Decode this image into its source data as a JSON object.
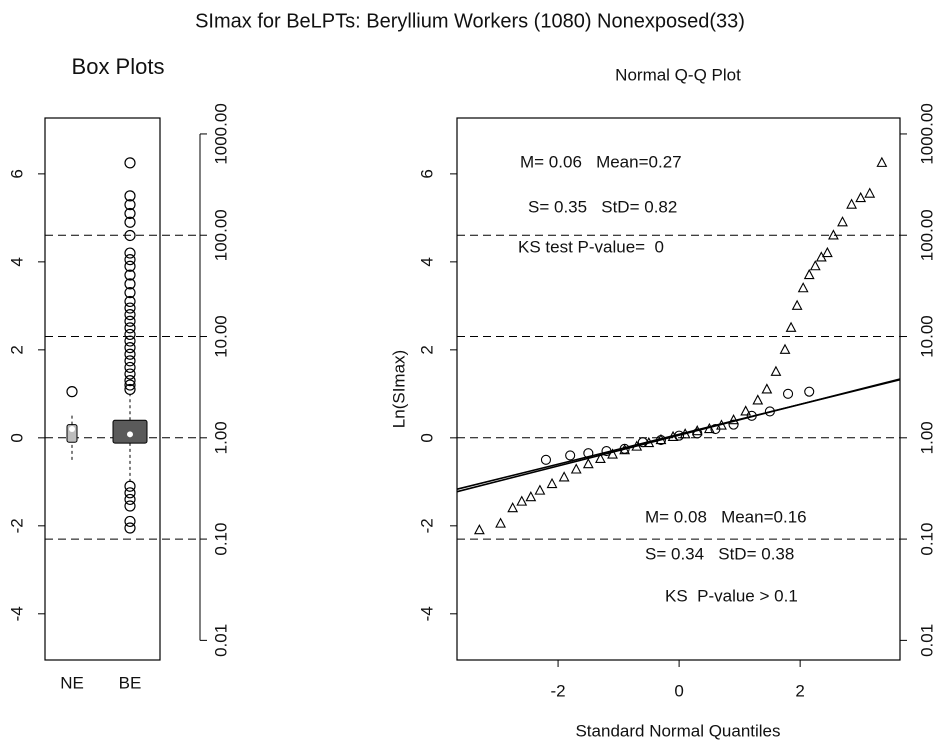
{
  "title": "SImax for BeLPTs:  Beryllium Workers (1080) Nonexposed(33)",
  "chart_data": [
    {
      "type": "box",
      "title": "Box Plots",
      "categories": [
        "NE",
        "BE"
      ],
      "boxes": [
        {
          "whisker_low": -0.5,
          "q1": -0.1,
          "median": 0.2,
          "q3": 0.3,
          "whisker_high": 0.55,
          "fill": "#bdbdbd",
          "outliers": [
            1.05
          ]
        },
        {
          "whisker_low": -1.0,
          "q1": -0.12,
          "median": 0.08,
          "q3": 0.4,
          "whisker_high": 1.0,
          "fill": "#5a5a5a",
          "outliers": [
            1.1,
            1.2,
            1.3,
            1.45,
            1.6,
            1.75,
            1.9,
            2.05,
            2.2,
            2.35,
            2.5,
            2.65,
            2.8,
            2.95,
            3.1,
            3.3,
            3.5,
            3.7,
            3.9,
            4.05,
            4.2,
            4.6,
            4.9,
            5.1,
            5.3,
            5.5,
            6.25,
            -1.1,
            -1.25,
            -1.4,
            -1.55,
            -1.9,
            -2.05
          ]
        }
      ],
      "ylim": [
        -5.05,
        7.27
      ],
      "yticks": [
        -4,
        -2,
        0,
        2,
        4,
        6
      ],
      "y2lim": [
        0.0064,
        1437
      ],
      "y2log": true,
      "y2ticks": [
        {
          "value": 0.01,
          "label": "0.01"
        },
        {
          "value": 0.1,
          "label": "0.10"
        },
        {
          "value": 1,
          "label": "1.00"
        },
        {
          "value": 10,
          "label": "10.00"
        },
        {
          "value": 100,
          "label": "100.00"
        },
        {
          "value": 1000,
          "label": "1000.00"
        }
      ],
      "hlines": [
        0.1,
        1,
        10,
        100
      ]
    },
    {
      "type": "qq",
      "title": "Normal Q-Q  Plot",
      "x_label": "Standard Normal Quantiles",
      "y_label": "Ln(SImax)",
      "series": [
        {
          "marker": "triangle",
          "x": [
            -3.3,
            -2.95,
            -2.75,
            -2.6,
            -2.45,
            -2.3,
            -2.1,
            -1.9,
            -1.7,
            -1.5,
            -1.3,
            -1.1,
            -0.9,
            -0.7,
            -0.5,
            -0.3,
            -0.1,
            0.1,
            0.3,
            0.5,
            0.7,
            0.9,
            1.1,
            1.3,
            1.45,
            1.6,
            1.75,
            1.85,
            1.95,
            2.05,
            2.15,
            2.25,
            2.35,
            2.45,
            2.55,
            2.7,
            2.85,
            3.0,
            3.15,
            3.35
          ],
          "values": [
            -2.1,
            -1.95,
            -1.6,
            -1.45,
            -1.35,
            -1.2,
            -1.05,
            -0.9,
            -0.72,
            -0.6,
            -0.48,
            -0.38,
            -0.28,
            -0.2,
            -0.12,
            -0.05,
            0.02,
            0.08,
            0.15,
            0.2,
            0.28,
            0.4,
            0.6,
            0.85,
            1.1,
            1.5,
            2.0,
            2.5,
            3.0,
            3.4,
            3.7,
            3.9,
            4.1,
            4.2,
            4.6,
            4.9,
            5.3,
            5.45,
            5.55,
            6.25
          ]
        },
        {
          "marker": "circle",
          "x": [
            -2.2,
            -1.8,
            -1.5,
            -1.2,
            -0.9,
            -0.6,
            -0.3,
            0,
            0.3,
            0.6,
            0.9,
            1.2,
            1.5,
            1.8,
            2.15
          ],
          "values": [
            -0.5,
            -0.4,
            -0.35,
            -0.3,
            -0.25,
            -0.1,
            -0.05,
            0.05,
            0.1,
            0.2,
            0.3,
            0.5,
            0.6,
            1.0,
            1.05
          ]
        }
      ],
      "ref_lines": [
        {
          "intercept": 0.08,
          "slope": 0.34
        },
        {
          "intercept": 0.06,
          "slope": 0.35
        }
      ],
      "annotations": [
        "M= 0.06   Mean=0.27",
        "S= 0.35   StD= 0.82",
        "KS test P-value=  0",
        "M= 0.08   Mean=0.16",
        "S= 0.34   StD= 0.38",
        "KS  P-value > 0.1"
      ],
      "xlim": [
        -3.67,
        3.65
      ],
      "xticks": [
        -2,
        0,
        2
      ],
      "ylim": [
        -5.05,
        7.27
      ],
      "yticks": [
        -4,
        -2,
        0,
        2,
        4,
        6
      ],
      "y2lim": [
        0.0064,
        1437
      ],
      "y2log": true,
      "y2ticks": [
        {
          "value": 0.01,
          "label": "0.01"
        },
        {
          "value": 0.1,
          "label": "0.10"
        },
        {
          "value": 1,
          "label": "1.00"
        },
        {
          "value": 10,
          "label": "10.00"
        },
        {
          "value": 100,
          "label": "100.00"
        },
        {
          "value": 1000,
          "label": "1000.00"
        }
      ],
      "hlines": [
        0.1,
        1,
        10,
        100
      ]
    }
  ]
}
